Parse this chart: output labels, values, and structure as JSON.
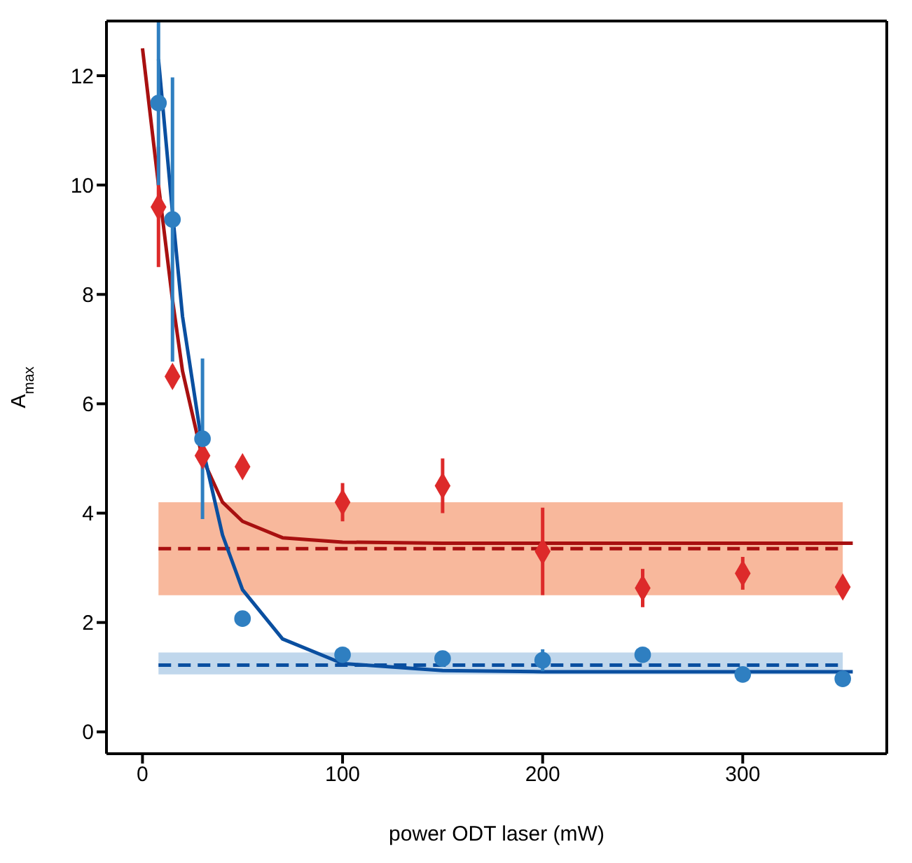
{
  "chart_data": {
    "type": "scatter",
    "xlabel": "power ODT laser (mW)",
    "ylabel": "A$_{max}$",
    "xlim": [
      -18,
      372
    ],
    "xticks": [
      0,
      100,
      200,
      300
    ],
    "ylim": [
      -0.4,
      13
    ],
    "yticks": [
      0,
      2,
      4,
      6,
      8,
      10,
      12
    ],
    "bands": [
      {
        "axis": "y",
        "from": 2.5,
        "to": 4.2,
        "color": "#f8b89c"
      },
      {
        "axis": "y",
        "from": 1.05,
        "to": 1.45,
        "color": "#c0d7ec"
      }
    ],
    "ref_lines": [
      {
        "axis": "y",
        "value": 3.35,
        "color": "#a81010",
        "line_style": "dashed"
      },
      {
        "axis": "y",
        "value": 1.22,
        "color": "#0a4fa0",
        "line_style": "dashed"
      }
    ],
    "series": [
      {
        "type": "line",
        "color": "#a81010",
        "x": [
          0,
          8,
          15,
          20,
          30,
          40,
          50,
          70,
          100,
          150,
          200,
          355
        ],
        "values": [
          12.5,
          10.0,
          7.9,
          6.6,
          5.0,
          4.2,
          3.85,
          3.55,
          3.47,
          3.45,
          3.45,
          3.45
        ],
        "line_style": "solid"
      },
      {
        "type": "line",
        "color": "#0a4fa0",
        "x": [
          8,
          15,
          20,
          30,
          40,
          50,
          70,
          100,
          150,
          200,
          355
        ],
        "values": [
          12.3,
          9.5,
          7.6,
          5.2,
          3.6,
          2.6,
          1.7,
          1.25,
          1.12,
          1.1,
          1.1
        ],
        "line_style": "solid"
      },
      {
        "color": "#dd2a2a",
        "marker": "diamond",
        "x": [
          8,
          15,
          30,
          50,
          100,
          150,
          200,
          250,
          300,
          350
        ],
        "values": [
          9.6,
          6.5,
          5.05,
          4.85,
          4.2,
          4.5,
          3.3,
          2.63,
          2.9,
          2.65
        ],
        "errors": [
          1.1,
          0.2,
          null,
          null,
          0.35,
          0.5,
          0.8,
          0.35,
          0.3,
          null
        ]
      },
      {
        "color": "#2f7fc1",
        "marker": "circle",
        "x": [
          8,
          15,
          30,
          50,
          100,
          150,
          200,
          250,
          300,
          350
        ],
        "values": [
          11.5,
          9.37,
          5.36,
          2.07,
          1.41,
          1.34,
          1.31,
          1.41,
          1.05,
          0.97
        ],
        "errors": [
          1.5,
          2.6,
          1.47,
          null,
          null,
          null,
          0.2,
          null,
          null,
          null
        ]
      }
    ]
  }
}
